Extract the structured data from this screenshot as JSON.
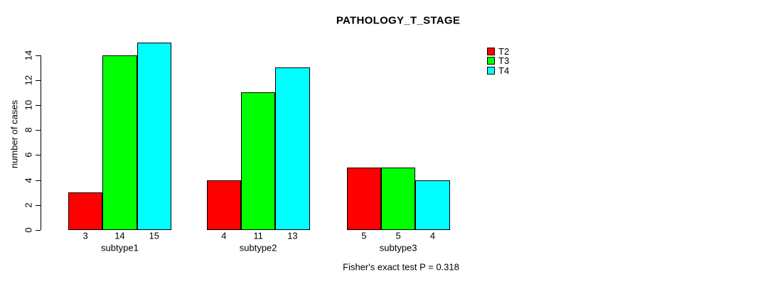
{
  "title": "PATHOLOGY_T_STAGE",
  "footnote": "Fisher's exact test P = 0.318",
  "colors": {
    "background": "#ffffff",
    "text": "#000000",
    "axis": "#000000",
    "t2": "#ff0000",
    "t3": "#00ff00",
    "t4": "#00ffff"
  },
  "chart_data": {
    "type": "bar",
    "title": "PATHOLOGY_T_STAGE",
    "categories": [
      "subtype1",
      "subtype2",
      "subtype3"
    ],
    "series": [
      {
        "name": "T2",
        "color": "#ff0000",
        "values": [
          3,
          4,
          5
        ]
      },
      {
        "name": "T3",
        "color": "#00ff00",
        "values": [
          14,
          11,
          5
        ]
      },
      {
        "name": "T4",
        "color": "#00ffff",
        "values": [
          15,
          13,
          4
        ]
      }
    ],
    "bar_value_labels": [
      [
        "3",
        "14",
        "15"
      ],
      [
        "4",
        "11",
        "13"
      ],
      [
        "5",
        "5",
        "4"
      ]
    ],
    "xlabel": "",
    "ylabel": "number of cases",
    "yticks": [
      0,
      2,
      4,
      6,
      8,
      10,
      12,
      14
    ],
    "ylim": [
      0,
      15
    ],
    "grid": false,
    "legend_position": "top-right",
    "legend_entries": [
      "T2",
      "T3",
      "T4"
    ],
    "annotation": "Fisher's exact test P = 0.318"
  }
}
